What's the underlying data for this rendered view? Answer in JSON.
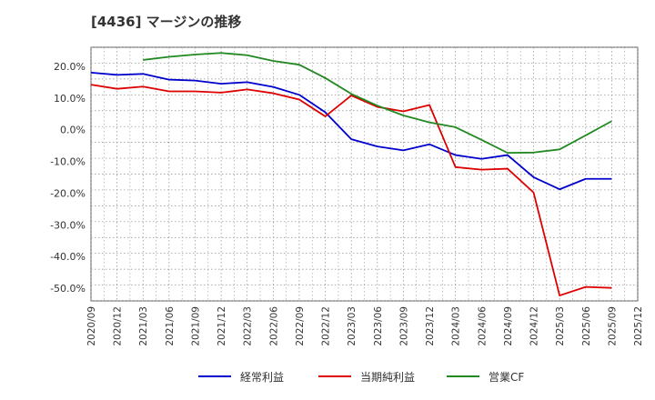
{
  "chart_data": {
    "type": "line",
    "title": "[4436]  マージンの推移",
    "xlabel": "",
    "ylabel": "",
    "ylim": [
      -54,
      26
    ],
    "yticks": [
      20,
      10,
      0,
      -10,
      -20,
      -30,
      -40,
      -50
    ],
    "ytick_labels": [
      "20.0%",
      "10.0%",
      "0.0%",
      "-10.0%",
      "-20.0%",
      "-30.0%",
      "-40.0%",
      "-50.0%"
    ],
    "categories": [
      "2020/09",
      "2020/12",
      "2021/03",
      "2021/06",
      "2021/09",
      "2021/12",
      "2022/03",
      "2022/06",
      "2022/09",
      "2022/12",
      "2023/03",
      "2023/06",
      "2023/09",
      "2023/12",
      "2024/03",
      "2024/06",
      "2024/09",
      "2024/12",
      "2025/03",
      "2025/06",
      "2025/09",
      "2025/12"
    ],
    "grid": true,
    "legend_position": "bottom",
    "series": [
      {
        "name": "経常利益",
        "color": "#0000cc",
        "values": [
          18.0,
          17.3,
          17.6,
          15.8,
          15.5,
          14.5,
          15.0,
          13.5,
          11.0,
          5.5,
          -3.0,
          -5.3,
          -6.5,
          -4.6,
          -8.0,
          -9.2,
          -8.0,
          -15.0,
          -18.8,
          -15.5,
          -15.5,
          null
        ]
      },
      {
        "name": "当期純利益",
        "color": "#dd0000",
        "values": [
          14.2,
          12.9,
          13.6,
          12.1,
          12.1,
          11.7,
          12.7,
          11.5,
          9.5,
          4.2,
          10.8,
          7.2,
          5.8,
          7.8,
          -11.8,
          -12.6,
          -12.3,
          -19.8,
          -52.3,
          -49.6,
          -49.9,
          null
        ]
      },
      {
        "name": "営業CF",
        "color": "#228822",
        "values": [
          null,
          null,
          22.0,
          23.0,
          23.7,
          24.2,
          23.5,
          21.7,
          20.5,
          16.3,
          11.3,
          7.6,
          4.5,
          2.3,
          0.8,
          -3.2,
          -7.3,
          -7.2,
          -6.2,
          -1.8,
          2.7,
          null
        ]
      }
    ]
  }
}
